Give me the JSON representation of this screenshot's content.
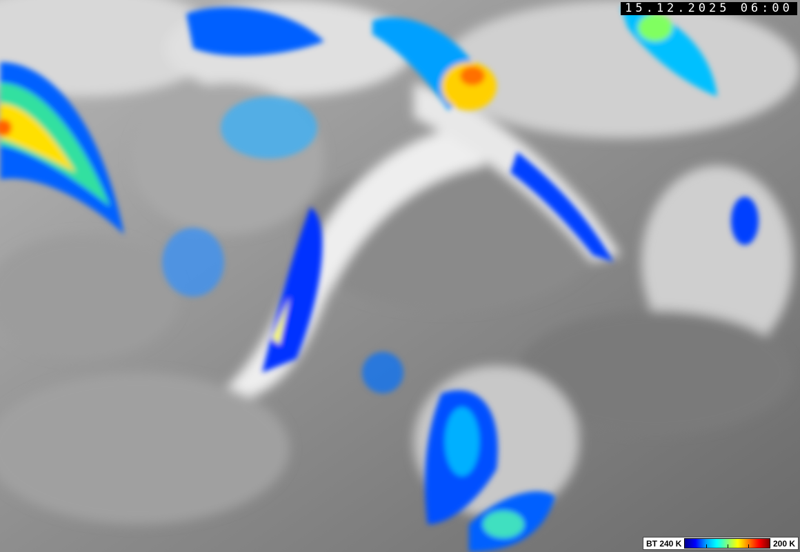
{
  "image": {
    "timestamp": "15.12.2025 06:00",
    "legend": {
      "left_label": "BT 240 K",
      "right_label": "200 K",
      "colormap": [
        "#00008f",
        "#0000ff",
        "#00a0ff",
        "#00ffff",
        "#80ff80",
        "#ffff00",
        "#ff8000",
        "#ff0000",
        "#800000"
      ]
    }
  }
}
